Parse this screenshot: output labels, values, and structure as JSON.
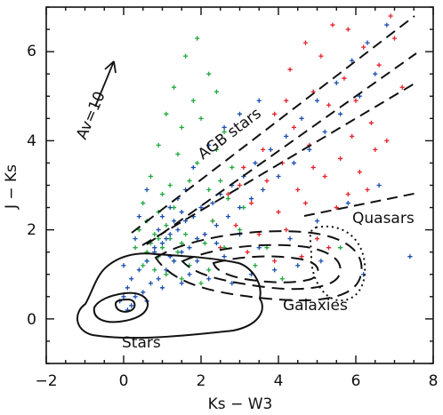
{
  "chart_data": {
    "type": "scatter",
    "xlabel": "Ks − W3",
    "ylabel": "J − Ks",
    "xlim": [
      -2,
      8
    ],
    "ylim": [
      -1,
      7
    ],
    "x_ticks": [
      "−2",
      "0",
      "2",
      "4",
      "6",
      "8"
    ],
    "y_ticks": [
      "0",
      "2",
      "4",
      "6"
    ],
    "series_colors": {
      "red": "#e8202a",
      "green": "#1faa3c",
      "blue": "#1a4fb0"
    },
    "series": [
      {
        "color": "red",
        "points": [
          [
            5.4,
            6.6
          ],
          [
            5.8,
            6.5
          ],
          [
            6.9,
            6.8
          ],
          [
            4.7,
            6.2
          ],
          [
            5.1,
            5.9
          ],
          [
            6.2,
            6.1
          ],
          [
            4.3,
            5.6
          ],
          [
            5.7,
            5.4
          ],
          [
            6.6,
            5.7
          ],
          [
            4.9,
            5.1
          ],
          [
            5.3,
            4.8
          ],
          [
            6.0,
            4.9
          ],
          [
            3.9,
            4.6
          ],
          [
            4.4,
            4.3
          ],
          [
            5.9,
            4.1
          ],
          [
            6.4,
            4.4
          ],
          [
            3.6,
            3.8
          ],
          [
            4.1,
            3.5
          ],
          [
            4.8,
            3.9
          ],
          [
            5.6,
            3.6
          ],
          [
            3.1,
            3.4
          ],
          [
            3.7,
            3.1
          ],
          [
            4.5,
            2.9
          ],
          [
            5.2,
            3.2
          ],
          [
            6.1,
            3.3
          ],
          [
            2.7,
            2.8
          ],
          [
            3.3,
            2.6
          ],
          [
            4.0,
            2.4
          ],
          [
            4.7,
            2.6
          ],
          [
            5.5,
            2.5
          ],
          [
            2.3,
            2.2
          ],
          [
            2.9,
            2.1
          ],
          [
            3.5,
            1.9
          ],
          [
            4.2,
            2.0
          ],
          [
            5.0,
            1.8
          ],
          [
            2.5,
            1.6
          ],
          [
            3.2,
            1.5
          ],
          [
            3.9,
            1.3
          ],
          [
            4.6,
            1.4
          ],
          [
            5.3,
            1.6
          ],
          [
            6.3,
            2.9
          ],
          [
            6.8,
            4.0
          ],
          [
            7.2,
            5.2
          ],
          [
            2.1,
            1.9
          ],
          [
            3.0,
            3.0
          ],
          [
            4.9,
            3.4
          ],
          [
            5.8,
            2.8
          ],
          [
            6.5,
            3.8
          ],
          [
            7.0,
            6.3
          ],
          [
            4.2,
            4.9
          ]
        ]
      },
      {
        "color": "green",
        "points": [
          [
            1.9,
            6.3
          ],
          [
            1.6,
            5.9
          ],
          [
            2.2,
            5.5
          ],
          [
            1.3,
            5.2
          ],
          [
            1.8,
            4.9
          ],
          [
            2.4,
            5.1
          ],
          [
            1.1,
            4.6
          ],
          [
            1.5,
            4.3
          ],
          [
            2.0,
            4.5
          ],
          [
            2.6,
            4.2
          ],
          [
            0.9,
            3.9
          ],
          [
            1.4,
            3.7
          ],
          [
            1.9,
            3.5
          ],
          [
            2.4,
            3.8
          ],
          [
            2.8,
            3.4
          ],
          [
            0.7,
            3.2
          ],
          [
            1.2,
            3.0
          ],
          [
            1.7,
            3.1
          ],
          [
            2.2,
            2.9
          ],
          [
            2.7,
            2.7
          ],
          [
            0.5,
            2.6
          ],
          [
            0.9,
            2.4
          ],
          [
            1.3,
            2.5
          ],
          [
            1.8,
            2.3
          ],
          [
            2.3,
            2.2
          ],
          [
            3.1,
            2.5
          ],
          [
            0.4,
            2.0
          ],
          [
            0.8,
            1.9
          ],
          [
            1.2,
            1.8
          ],
          [
            1.6,
            1.9
          ],
          [
            2.1,
            1.7
          ],
          [
            2.6,
            1.6
          ],
          [
            0.3,
            1.6
          ],
          [
            0.6,
            1.5
          ],
          [
            0.9,
            1.4
          ],
          [
            1.3,
            1.3
          ],
          [
            1.7,
            1.2
          ],
          [
            2.2,
            1.1
          ],
          [
            0.5,
            1.2
          ],
          [
            0.8,
            1.1
          ],
          [
            1.1,
            1.0
          ],
          [
            1.5,
            0.9
          ],
          [
            2.0,
            0.8
          ],
          [
            0.7,
            1.7
          ],
          [
            1.0,
            1.6
          ],
          [
            1.4,
            1.5
          ],
          [
            0.6,
            1.3
          ],
          [
            1.1,
            2.1
          ],
          [
            0.9,
            1.8
          ],
          [
            1.5,
            1.7
          ],
          [
            3.4,
            1.2
          ],
          [
            3.0,
            2.0
          ],
          [
            4.1,
            0.9
          ],
          [
            3.7,
            1.6
          ],
          [
            5.6,
            1.6
          ],
          [
            2.5,
            3.1
          ],
          [
            1.0,
            2.8
          ],
          [
            0.6,
            2.2
          ]
        ]
      },
      {
        "color": "blue",
        "points": [
          [
            6.8,
            6.6
          ],
          [
            6.3,
            6.2
          ],
          [
            5.9,
            5.8
          ],
          [
            6.5,
            5.5
          ],
          [
            5.5,
            5.3
          ],
          [
            6.1,
            5.0
          ],
          [
            5.0,
            4.9
          ],
          [
            5.6,
            4.6
          ],
          [
            4.6,
            4.5
          ],
          [
            5.2,
            4.2
          ],
          [
            4.2,
            4.1
          ],
          [
            4.8,
            3.8
          ],
          [
            3.8,
            3.8
          ],
          [
            4.4,
            3.5
          ],
          [
            3.4,
            3.5
          ],
          [
            4.0,
            3.2
          ],
          [
            3.1,
            3.2
          ],
          [
            3.6,
            2.9
          ],
          [
            2.8,
            3.0
          ],
          [
            3.3,
            2.7
          ],
          [
            2.5,
            2.8
          ],
          [
            3.0,
            2.5
          ],
          [
            2.3,
            2.6
          ],
          [
            2.7,
            2.3
          ],
          [
            2.0,
            2.5
          ],
          [
            2.4,
            2.1
          ],
          [
            1.8,
            2.3
          ],
          [
            2.1,
            1.9
          ],
          [
            1.6,
            2.2
          ],
          [
            1.9,
            1.8
          ],
          [
            1.4,
            2.0
          ],
          [
            1.7,
            1.6
          ],
          [
            1.2,
            1.9
          ],
          [
            1.5,
            1.5
          ],
          [
            1.0,
            1.7
          ],
          [
            1.3,
            1.3
          ],
          [
            0.8,
            1.5
          ],
          [
            1.1,
            1.1
          ],
          [
            0.6,
            1.3
          ],
          [
            0.9,
            0.9
          ],
          [
            0.4,
            1.1
          ],
          [
            0.7,
            0.8
          ],
          [
            0.2,
            0.9
          ],
          [
            0.5,
            0.6
          ],
          [
            0.1,
            0.7
          ],
          [
            0.3,
            0.5
          ],
          [
            0.0,
            0.5
          ],
          [
            0.2,
            0.3
          ],
          [
            -0.1,
            0.4
          ],
          [
            0.1,
            0.2
          ],
          [
            1.4,
            2.7
          ],
          [
            1.2,
            2.5
          ],
          [
            1.6,
            2.9
          ],
          [
            1.0,
            2.3
          ],
          [
            1.5,
            2.4
          ],
          [
            1.3,
            2.2
          ],
          [
            0.9,
            2.0
          ],
          [
            1.1,
            1.8
          ],
          [
            0.8,
            1.6
          ],
          [
            1.2,
            1.4
          ],
          [
            1.7,
            1.0
          ],
          [
            2.2,
            0.9
          ],
          [
            2.8,
            0.8
          ],
          [
            3.3,
            1.0
          ],
          [
            3.9,
            1.1
          ],
          [
            4.5,
            1.2
          ],
          [
            5.1,
            1.3
          ],
          [
            2.6,
            1.4
          ],
          [
            3.5,
            1.6
          ],
          [
            4.3,
            1.8
          ],
          [
            5.0,
            2.2
          ],
          [
            5.8,
            2.6
          ],
          [
            6.6,
            3.0
          ],
          [
            7.4,
            1.4
          ],
          [
            6.2,
            1.0
          ],
          [
            1.8,
            3.4
          ],
          [
            2.2,
            3.9
          ],
          [
            2.6,
            4.3
          ],
          [
            3.0,
            4.6
          ],
          [
            3.5,
            4.9
          ],
          [
            0.6,
            2.9
          ],
          [
            0.4,
            2.3
          ],
          [
            0.3,
            1.8
          ],
          [
            0.0,
            1.2
          ],
          [
            0.6,
            0.4
          ],
          [
            1.0,
            0.7
          ],
          [
            1.5,
            0.8
          ],
          [
            1.9,
            1.3
          ],
          [
            2.4,
            1.7
          ],
          [
            3.0,
            1.9
          ]
        ]
      }
    ],
    "annotations": {
      "av": "Av=10",
      "agb": "AGB stars",
      "quasars": "Quasars",
      "galaxies": "Galaxies",
      "stars": "Stars"
    },
    "grid": false
  }
}
